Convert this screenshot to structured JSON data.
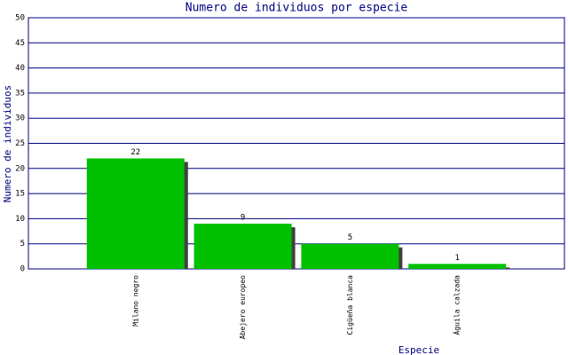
{
  "chart_data": {
    "type": "bar",
    "title": "Numero de individuos por especie",
    "x_label": "Especie",
    "y_label": "Numero de individuos",
    "categories": [
      "Milano negro",
      "Abejero europeo",
      "Cigüeña blanca",
      "Águila calzada"
    ],
    "values": [
      22,
      9,
      5,
      1
    ],
    "color": "#00c000",
    "ylim": [
      0,
      50
    ],
    "yticks": [
      0,
      5,
      10,
      15,
      20,
      25,
      30,
      35,
      40,
      45,
      50
    ],
    "grid": true
  }
}
